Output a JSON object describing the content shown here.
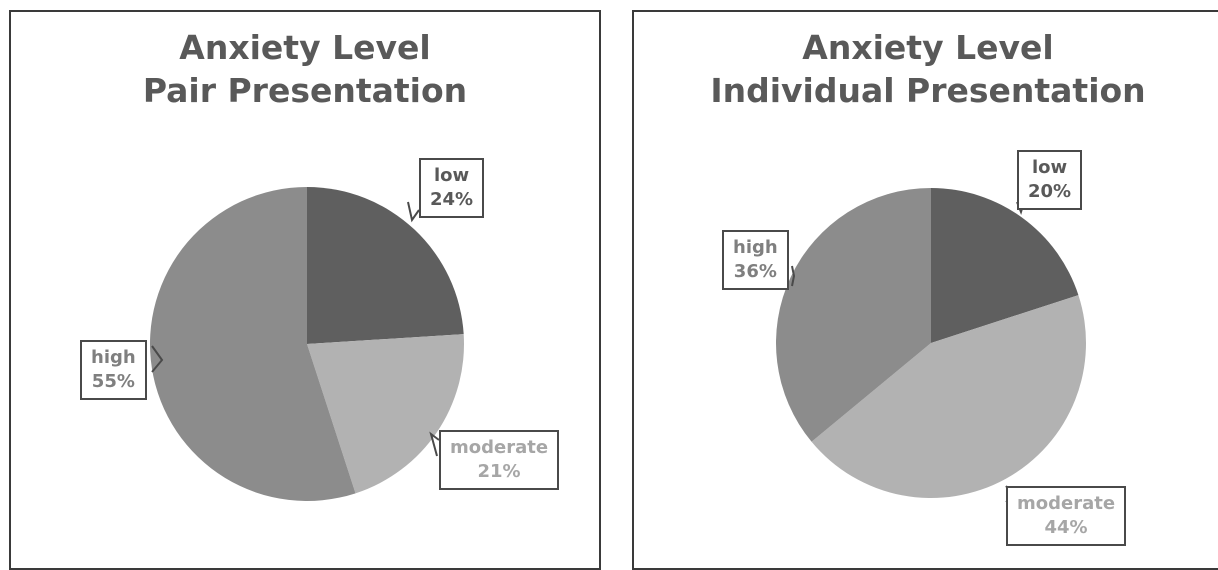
{
  "chart_data": [
    {
      "type": "pie",
      "title": [
        "Anxiety Level",
        "Pair Presentation"
      ],
      "slices": [
        {
          "label": "low",
          "value": 24,
          "value_label": "24%",
          "color": "#5f5f5f",
          "text_color": "#595959"
        },
        {
          "label": "moderate",
          "value": 21,
          "value_label": "21%",
          "color": "#b2b2b2",
          "text_color": "#a6a6a6"
        },
        {
          "label": "high",
          "value": 55,
          "value_label": "55%",
          "color": "#8c8c8c",
          "text_color": "#7f7f7f"
        }
      ],
      "start_angle_deg": 0,
      "direction": "clockwise"
    },
    {
      "type": "pie",
      "title": [
        "Anxiety Level",
        "Individual Presentation"
      ],
      "slices": [
        {
          "label": "low",
          "value": 20,
          "value_label": "20%",
          "color": "#5f5f5f",
          "text_color": "#595959"
        },
        {
          "label": "moderate",
          "value": 44,
          "value_label": "44%",
          "color": "#b2b2b2",
          "text_color": "#a6a6a6"
        },
        {
          "label": "high",
          "value": 36,
          "value_label": "36%",
          "color": "#8c8c8c",
          "text_color": "#7f7f7f"
        }
      ],
      "start_angle_deg": 0,
      "direction": "clockwise"
    }
  ]
}
